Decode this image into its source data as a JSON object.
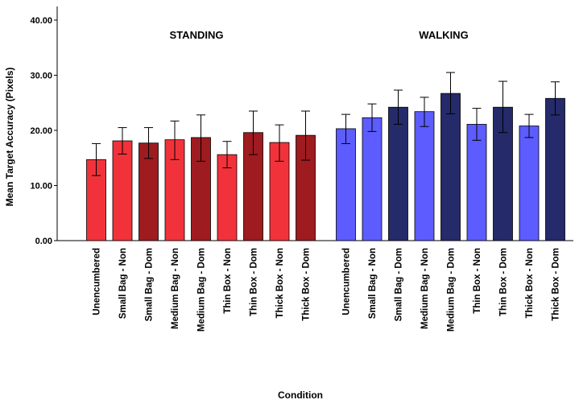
{
  "chart_data": {
    "type": "bar",
    "xlabel": "Condition",
    "ylabel": "Mean Target Accuracy (Pixels)",
    "ylim": [
      0,
      43
    ],
    "yticks": [
      "0.00",
      "10.00",
      "20.00",
      "30.00",
      "40.00"
    ],
    "ytick_values": [
      0,
      10,
      20,
      30,
      40
    ],
    "grid": false,
    "groups": [
      {
        "name": "STANDING",
        "categories": [
          "Unencumbered",
          "Small Bag - Non",
          "Small Bag - Dom",
          "Medium Bag - Non",
          "Medium Bag - Dom",
          "Thin Box - Non",
          "Thin Box - Dom",
          "Thick Box - Non",
          "Thick Box - Dom"
        ],
        "values": [
          14.7,
          18.1,
          17.7,
          18.3,
          18.7,
          15.6,
          19.6,
          17.8,
          19.1
        ],
        "error_low": [
          11.8,
          15.7,
          14.9,
          14.7,
          14.4,
          13.2,
          15.6,
          14.4,
          14.6
        ],
        "error_high": [
          17.6,
          20.5,
          20.5,
          21.7,
          22.8,
          18.0,
          23.5,
          21.0,
          23.5
        ],
        "colors": [
          "#f2323a",
          "#f2323a",
          "#9e1b1f",
          "#f2323a",
          "#9e1b1f",
          "#f2323a",
          "#9e1b1f",
          "#f2323a",
          "#9e1b1f"
        ]
      },
      {
        "name": "WALKING",
        "categories": [
          "Unencumbered",
          "Small Bag - Non",
          "Small Bag - Dom",
          "Medium Bag - Non",
          "Medium Bag - Dom",
          "Thin Box - Non",
          "Thin Box - Dom",
          "Thick Box - Non",
          "Thick Box - Dom"
        ],
        "values": [
          20.3,
          22.3,
          24.2,
          23.4,
          26.7,
          21.1,
          24.2,
          20.8,
          25.8
        ],
        "error_low": [
          17.6,
          19.8,
          21.1,
          20.7,
          23.0,
          18.2,
          19.6,
          18.7,
          22.8
        ],
        "error_high": [
          22.9,
          24.8,
          27.3,
          26.0,
          30.5,
          24.0,
          28.9,
          22.9,
          28.8
        ],
        "colors": [
          "#5c5cff",
          "#5c5cff",
          "#242a6a",
          "#5c5cff",
          "#242a6a",
          "#5c5cff",
          "#242a6a",
          "#5c5cff",
          "#242a6a"
        ]
      }
    ]
  }
}
